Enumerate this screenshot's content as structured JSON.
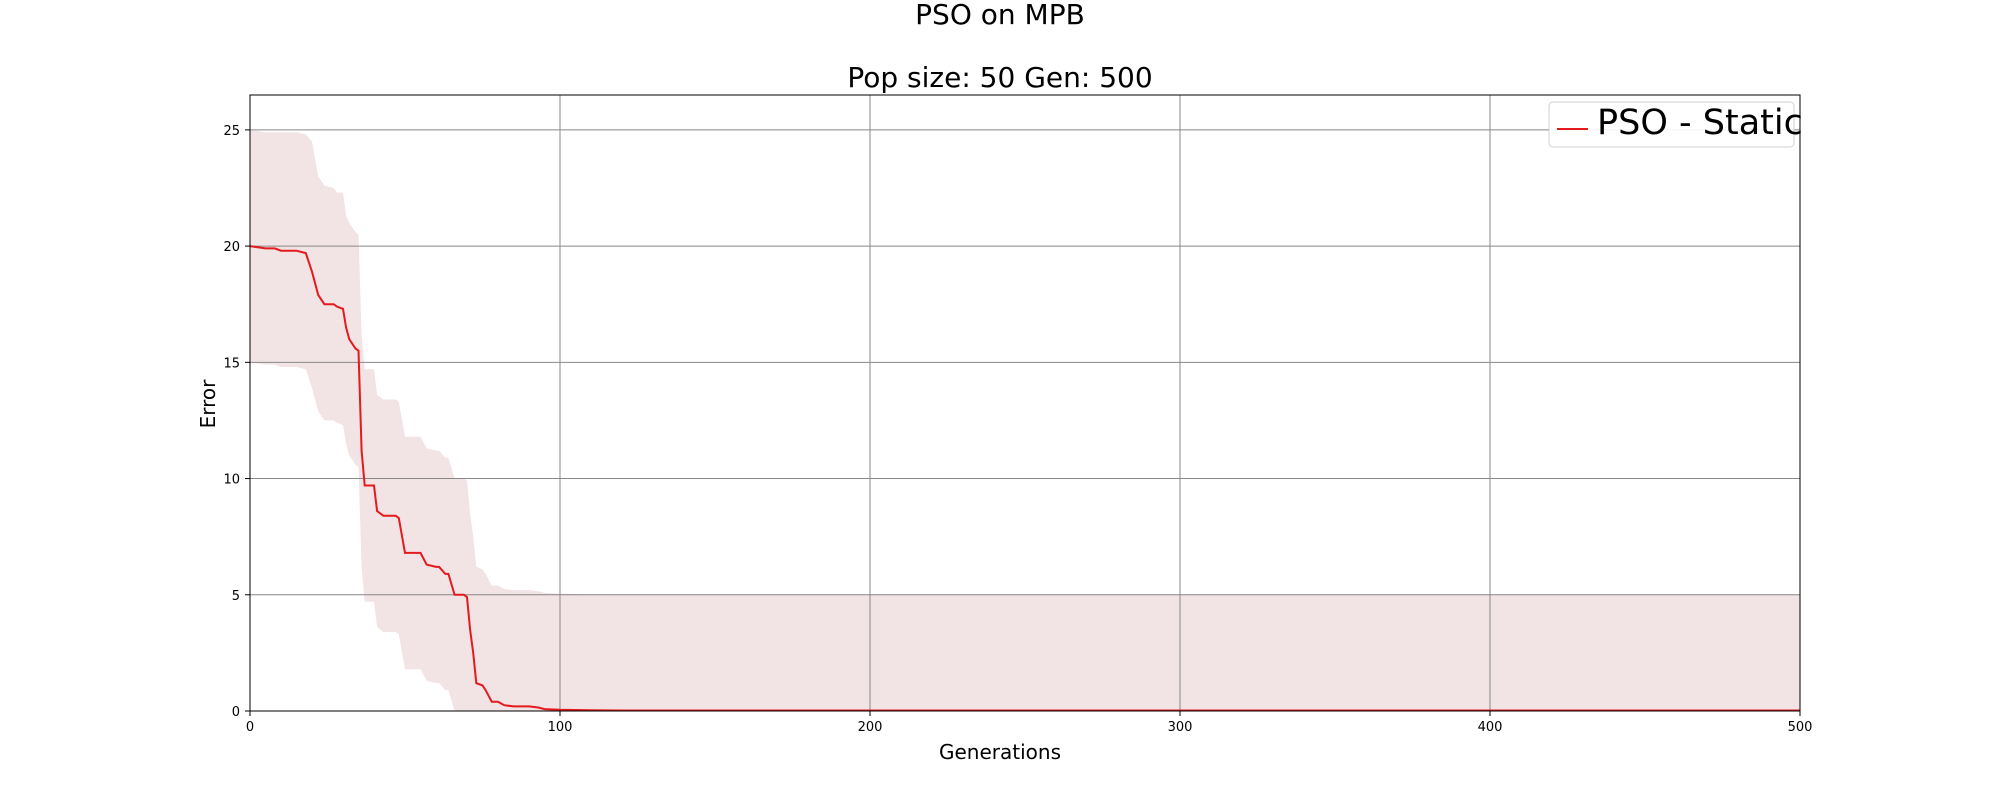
{
  "chart_data": {
    "type": "line",
    "title": "PSO on MPB",
    "subtitle": "Pop size: 50  Gen: 500",
    "xlabel": "Generations",
    "ylabel": "Error",
    "xlim": [
      0,
      500
    ],
    "ylim": [
      0,
      26.5
    ],
    "xticks": [
      0,
      100,
      200,
      300,
      400,
      500
    ],
    "yticks": [
      0,
      5,
      10,
      15,
      20,
      25
    ],
    "grid": true,
    "legend": {
      "position": "top-right",
      "entries": [
        "PSO - Static"
      ]
    },
    "series": [
      {
        "name": "PSO - Static",
        "color": "#e41a1c",
        "band_color": "#f2e3e5",
        "x": [
          0,
          5,
          8,
          10,
          15,
          18,
          20,
          22,
          24,
          27,
          28,
          30,
          31,
          32,
          34,
          35,
          36,
          37,
          38,
          40,
          41,
          43,
          46,
          47,
          48,
          50,
          53,
          54,
          55,
          57,
          60,
          61,
          63,
          64,
          66,
          69,
          70,
          71,
          72,
          73,
          75,
          76,
          78,
          80,
          82,
          85,
          90,
          93,
          95,
          100,
          110,
          120,
          500
        ],
        "y": [
          20.0,
          19.9,
          19.9,
          19.8,
          19.8,
          19.7,
          18.9,
          17.9,
          17.5,
          17.5,
          17.4,
          17.3,
          16.5,
          16.0,
          15.6,
          15.5,
          11.2,
          9.7,
          9.7,
          9.7,
          8.6,
          8.4,
          8.4,
          8.4,
          8.3,
          6.8,
          6.8,
          6.8,
          6.8,
          6.3,
          6.2,
          6.2,
          5.9,
          5.9,
          5.0,
          5.0,
          4.9,
          3.5,
          2.5,
          1.2,
          1.1,
          0.9,
          0.4,
          0.4,
          0.25,
          0.2,
          0.2,
          0.15,
          0.08,
          0.05,
          0.03,
          0.02,
          0.02
        ],
        "upper": [
          25.0,
          24.9,
          24.9,
          24.9,
          24.9,
          24.8,
          24.5,
          23.0,
          22.6,
          22.5,
          22.3,
          22.3,
          21.3,
          21.0,
          20.6,
          20.5,
          16.2,
          14.7,
          14.7,
          14.7,
          13.6,
          13.4,
          13.4,
          13.4,
          13.3,
          11.8,
          11.8,
          11.8,
          11.8,
          11.3,
          11.2,
          11.2,
          10.9,
          10.9,
          10.0,
          10.0,
          9.9,
          8.5,
          7.5,
          6.2,
          6.1,
          5.9,
          5.4,
          5.4,
          5.25,
          5.2,
          5.2,
          5.15,
          5.08,
          5.05,
          5.03,
          5.02,
          5.02
        ],
        "lower": [
          15.0,
          14.9,
          14.9,
          14.8,
          14.8,
          14.7,
          13.9,
          12.9,
          12.5,
          12.5,
          12.4,
          12.3,
          11.5,
          11.0,
          10.6,
          10.5,
          6.2,
          4.7,
          4.7,
          4.7,
          3.6,
          3.4,
          3.4,
          3.4,
          3.3,
          1.8,
          1.8,
          1.8,
          1.8,
          1.3,
          1.2,
          1.2,
          0.9,
          0.9,
          0.0,
          0.0,
          0.0,
          0.0,
          0.0,
          0.0,
          0.0,
          0.0,
          0.0,
          0.0,
          0.0,
          0.0,
          0.0,
          0.0,
          0.0,
          0.0,
          0.0,
          0.0,
          0.0
        ]
      }
    ]
  }
}
